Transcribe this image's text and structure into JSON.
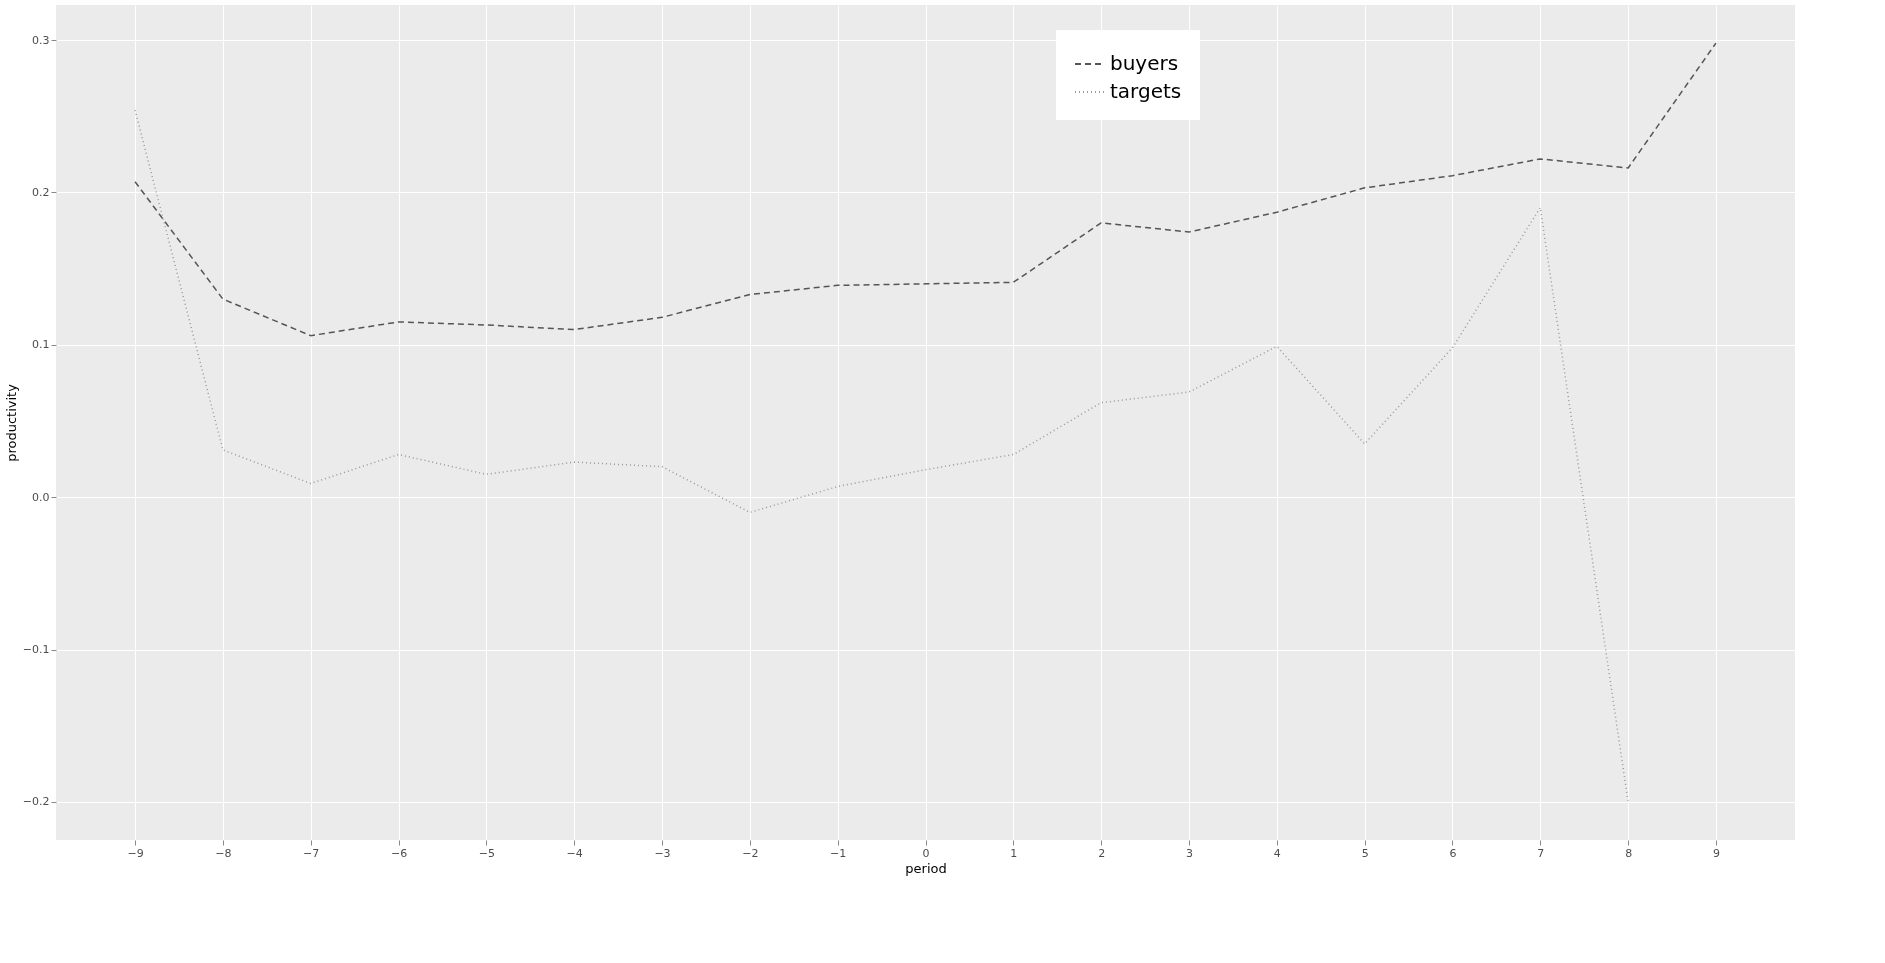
{
  "chart_data": {
    "type": "line",
    "xlabel": "period",
    "ylabel": "productivity",
    "xlim": [
      -9.9,
      9.9
    ],
    "xticks": [
      -9,
      -8,
      -7,
      -6,
      -5,
      -4,
      -3,
      -2,
      -1,
      0,
      1,
      2,
      3,
      4,
      5,
      6,
      7,
      8,
      9
    ],
    "ylim": [
      -0.225,
      0.323
    ],
    "yticks": [
      -0.2,
      -0.1,
      {
        "value": 0,
        "label": "0.0"
      },
      0.1,
      0.2,
      0.3
    ],
    "grid": true,
    "legend": "top right",
    "marker": "none",
    "series": [
      {
        "name": "buyers",
        "color": "#555555",
        "line_style": "dashed",
        "x": [
          -9,
          -8,
          -7,
          -6,
          -5,
          -4,
          -3,
          -2,
          -1,
          0,
          1,
          2,
          3,
          4,
          5,
          6,
          7,
          8,
          9
        ],
        "values": [
          0.207,
          0.13,
          0.106,
          0.115,
          0.113,
          0.11,
          0.118,
          0.133,
          0.139,
          0.14,
          0.141,
          0.18,
          0.174,
          0.187,
          0.203,
          0.211,
          0.222,
          0.216,
          0.298
        ]
      },
      {
        "name": "targets",
        "color": "#999999",
        "line_style": "dotted",
        "x": [
          -9,
          -8,
          -7,
          -6,
          -5,
          -4,
          -3,
          -2,
          -1,
          0,
          1,
          2,
          3,
          4,
          5,
          6,
          7,
          8
        ],
        "values": [
          0.254,
          0.031,
          0.009,
          0.028,
          0.015,
          0.023,
          0.02,
          -0.01,
          0.007,
          0.018,
          0.028,
          0.062,
          0.069,
          0.099,
          0.035,
          0.098,
          0.19,
          -0.2
        ]
      }
    ]
  }
}
